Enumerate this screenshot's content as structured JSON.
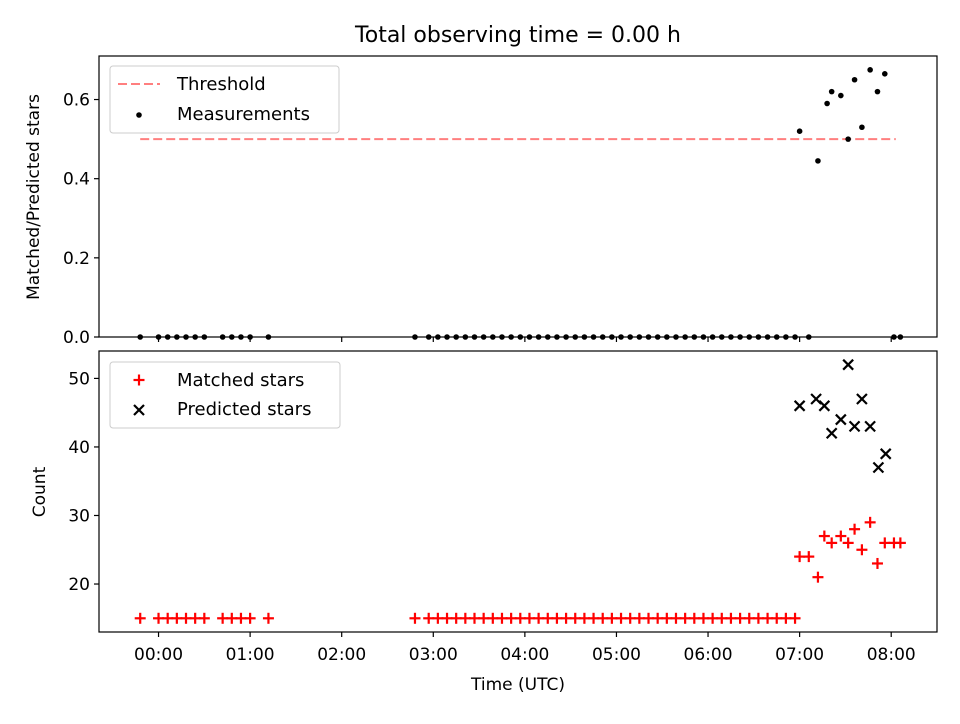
{
  "title": "Total observing time = 0.00 h",
  "colors": {
    "threshold": "#ff7f7f",
    "measurement": "#000000",
    "matched": "#ff0000",
    "predicted": "#000000"
  },
  "chart_data": [
    {
      "type": "scatter",
      "title": "Total observing time = 0.00 h",
      "ylabel": "Matched/Predicted stars",
      "ylim": [
        0,
        0.71
      ],
      "yticks": [
        "0.0",
        "0.2",
        "0.4",
        "0.6"
      ],
      "yticks_values": [
        0,
        0.2,
        0.4,
        0.6
      ],
      "legend_position": "top-left",
      "legend": [
        "Threshold",
        "Measurements"
      ],
      "threshold": {
        "name": "Threshold",
        "y": 0.5,
        "x_start": -0.2,
        "x_end": 8.05
      },
      "series": [
        {
          "name": "Measurements",
          "x": [
            -0.2,
            0.0,
            0.1,
            0.2,
            0.3,
            0.4,
            0.5,
            0.7,
            0.8,
            0.9,
            1.0,
            1.2,
            2.8,
            2.95,
            3.05,
            3.15,
            3.25,
            3.35,
            3.45,
            3.55,
            3.65,
            3.75,
            3.85,
            3.95,
            4.05,
            4.15,
            4.25,
            4.35,
            4.45,
            4.55,
            4.65,
            4.75,
            4.85,
            4.95,
            5.05,
            5.15,
            5.25,
            5.35,
            5.45,
            5.55,
            5.65,
            5.75,
            5.85,
            5.95,
            6.05,
            6.15,
            6.25,
            6.35,
            6.45,
            6.55,
            6.65,
            6.75,
            6.85,
            6.95,
            7.1,
            8.03,
            8.1,
            7.0,
            7.2,
            7.3,
            7.35,
            7.45,
            7.53,
            7.6,
            7.68,
            7.77,
            7.85,
            7.93
          ],
          "y": [
            0,
            0,
            0,
            0,
            0,
            0,
            0,
            0,
            0,
            0,
            0,
            0,
            0,
            0,
            0,
            0,
            0,
            0,
            0,
            0,
            0,
            0,
            0,
            0,
            0,
            0,
            0,
            0,
            0,
            0,
            0,
            0,
            0,
            0,
            0,
            0,
            0,
            0,
            0,
            0,
            0,
            0,
            0,
            0,
            0,
            0,
            0,
            0,
            0,
            0,
            0,
            0,
            0,
            0,
            0,
            0,
            0,
            0.52,
            0.445,
            0.59,
            0.62,
            0.61,
            0.5,
            0.65,
            0.53,
            0.675,
            0.62,
            0.665
          ]
        }
      ]
    },
    {
      "type": "scatter",
      "xlabel": "Time (UTC)",
      "ylabel": "Count",
      "ylim": [
        13,
        54
      ],
      "yticks": [
        "20",
        "30",
        "40",
        "50"
      ],
      "yticks_values": [
        20,
        30,
        40,
        50
      ],
      "xlim": [
        -0.65,
        8.5
      ],
      "xticks": [
        "00:00",
        "01:00",
        "02:00",
        "03:00",
        "04:00",
        "05:00",
        "06:00",
        "07:00",
        "08:00"
      ],
      "xticks_values": [
        0,
        1,
        2,
        3,
        4,
        5,
        6,
        7,
        8
      ],
      "legend_position": "top-left",
      "legend": [
        "Matched stars",
        "Predicted stars"
      ],
      "series": [
        {
          "name": "Matched stars",
          "x": [
            -0.2,
            0.0,
            0.1,
            0.2,
            0.3,
            0.4,
            0.5,
            0.7,
            0.8,
            0.9,
            1.0,
            1.2,
            2.8,
            2.95,
            3.05,
            3.15,
            3.25,
            3.35,
            3.45,
            3.55,
            3.65,
            3.75,
            3.85,
            3.95,
            4.05,
            4.15,
            4.25,
            4.35,
            4.45,
            4.55,
            4.65,
            4.75,
            4.85,
            4.95,
            5.05,
            5.15,
            5.25,
            5.35,
            5.45,
            5.55,
            5.65,
            5.75,
            5.85,
            5.95,
            6.05,
            6.15,
            6.25,
            6.35,
            6.45,
            6.55,
            6.65,
            6.75,
            6.85,
            6.95,
            7.0,
            7.1,
            7.2,
            7.27,
            7.35,
            7.45,
            7.53,
            7.6,
            7.68,
            7.77,
            7.85,
            7.93,
            8.03,
            8.1
          ],
          "y": [
            15,
            15,
            15,
            15,
            15,
            15,
            15,
            15,
            15,
            15,
            15,
            15,
            15,
            15,
            15,
            15,
            15,
            15,
            15,
            15,
            15,
            15,
            15,
            15,
            15,
            15,
            15,
            15,
            15,
            15,
            15,
            15,
            15,
            15,
            15,
            15,
            15,
            15,
            15,
            15,
            15,
            15,
            15,
            15,
            15,
            15,
            15,
            15,
            15,
            15,
            15,
            15,
            15,
            15,
            24,
            24,
            21,
            27,
            26,
            27,
            26,
            28,
            25,
            29,
            23,
            26,
            26,
            26
          ]
        },
        {
          "name": "Predicted stars",
          "x": [
            7.0,
            7.18,
            7.27,
            7.35,
            7.45,
            7.53,
            7.6,
            7.68,
            7.77,
            7.86,
            7.94
          ],
          "y": [
            46,
            47,
            46,
            42,
            44,
            52,
            43,
            47,
            43,
            37,
            39
          ]
        }
      ]
    }
  ]
}
